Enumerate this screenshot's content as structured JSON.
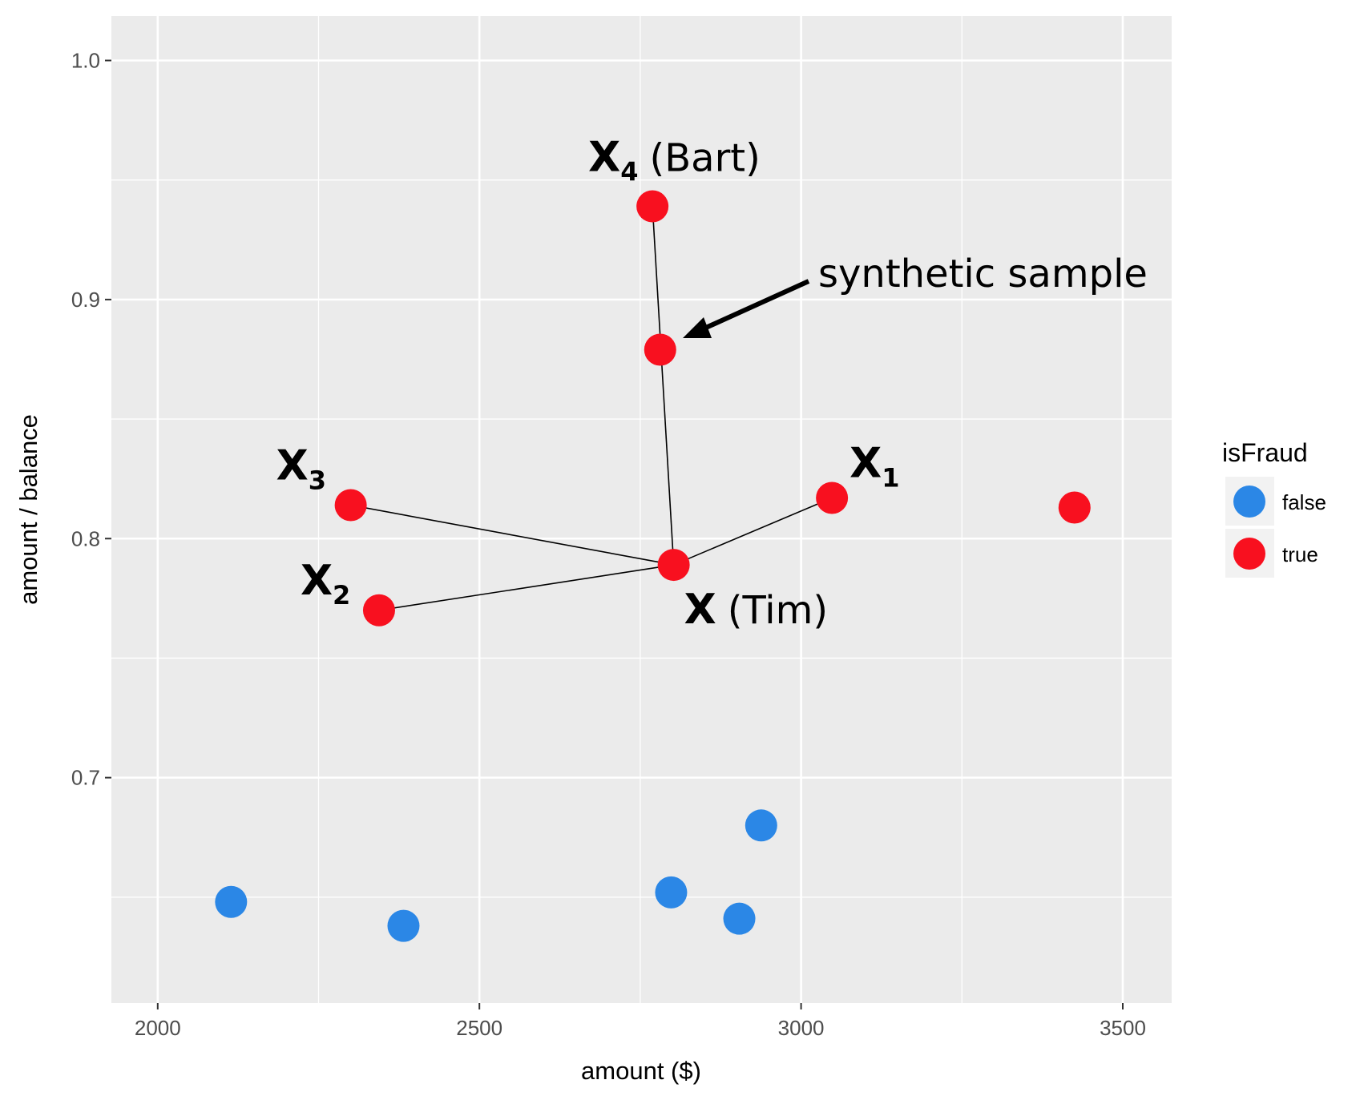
{
  "chart_data": {
    "type": "scatter",
    "xlabel": "amount ($)",
    "ylabel": "amount / balance",
    "xlim": [
      1928,
      3576
    ],
    "ylim": [
      0.6057,
      1.0186
    ],
    "xticks": [
      2000,
      2500,
      3000,
      3500
    ],
    "yticks": [
      {
        "value": 0.7,
        "label": "0.7"
      },
      {
        "value": 0.8,
        "label": "0.8"
      },
      {
        "value": 0.9,
        "label": "0.9"
      },
      {
        "value": 1.0,
        "label": "1.0"
      }
    ],
    "xminor": [
      2250,
      2750,
      3250
    ],
    "yminor": [
      0.65,
      0.75,
      0.85,
      0.95
    ],
    "grid": true,
    "legend": {
      "title": "isFraud",
      "position": "right"
    },
    "series": [
      {
        "name": "false",
        "color": "#2b87e6",
        "x": [
          2114,
          2382,
          2798,
          2904,
          2938
        ],
        "values": [
          0.648,
          0.638,
          0.652,
          0.641,
          0.68
        ]
      },
      {
        "name": "true",
        "color": "#f8101f",
        "x": [
          2769,
          2781,
          2300,
          3048,
          2802,
          2344,
          3425
        ],
        "values": [
          0.939,
          0.879,
          0.814,
          0.817,
          0.789,
          0.77,
          0.813
        ]
      }
    ],
    "annotations": [
      {
        "text": "X",
        "subscript": "4",
        "note": "(Bart)"
      },
      {
        "text": "X",
        "subscript": "3"
      },
      {
        "text": "X",
        "subscript": "2"
      },
      {
        "text": "X",
        "subscript": "1"
      },
      {
        "text": "X",
        "note": "(Tim)"
      },
      {
        "text": "synthetic sample"
      }
    ]
  }
}
